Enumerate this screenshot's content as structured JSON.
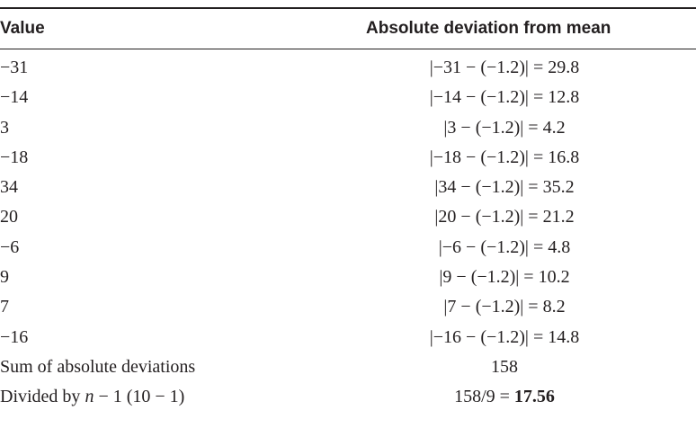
{
  "table": {
    "headers": {
      "value": "Value",
      "deviation": "Absolute deviation from mean"
    },
    "rows": [
      {
        "value": "−31",
        "deviation": "|−31 − (−1.2)| = 29.8"
      },
      {
        "value": "−14",
        "deviation": "|−14 − (−1.2)| = 12.8"
      },
      {
        "value": "3",
        "deviation": "|3 − (−1.2)| = 4.2"
      },
      {
        "value": "−18",
        "deviation": "|−18 − (−1.2)| = 16.8"
      },
      {
        "value": "34",
        "deviation": "|34 − (−1.2)| = 35.2"
      },
      {
        "value": "20",
        "deviation": "|20 − (−1.2)| = 21.2"
      },
      {
        "value": "−6",
        "deviation": "|−6 − (−1.2)| = 4.8"
      },
      {
        "value": "9",
        "deviation": "|9 − (−1.2)| = 10.2"
      },
      {
        "value": "7",
        "deviation": "|7 − (−1.2)| = 8.2"
      },
      {
        "value": "−16",
        "deviation": "|−16 − (−1.2)| = 14.8"
      }
    ],
    "sum_row": {
      "label": "Sum of absolute deviations",
      "value": "158"
    },
    "divided_row": {
      "label_prefix": "Divided by ",
      "label_var": "n",
      "label_suffix": " − 1 (10 − 1)",
      "value_prefix": "158/9 = ",
      "value_result": "17.56"
    }
  }
}
